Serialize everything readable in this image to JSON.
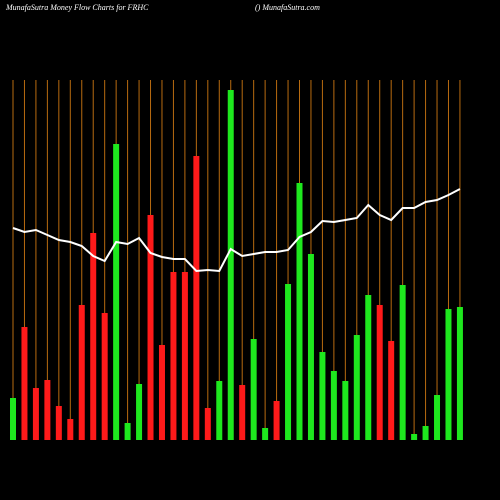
{
  "chart_data": {
    "type": "bar",
    "title": "MunafaSutra  Money Flow  Charts for FRHC",
    "subtitle": "() MunafaSutra.com",
    "categories": [
      null,
      null,
      null,
      null,
      null,
      null,
      null,
      null,
      null,
      null,
      null,
      null,
      null,
      null,
      null,
      null,
      null,
      null,
      null,
      null,
      null,
      null,
      null,
      null,
      null,
      null,
      null,
      null,
      null,
      null,
      null,
      null,
      null,
      null,
      null,
      null,
      null,
      null,
      null,
      null
    ],
    "series": [
      {
        "type": "bar",
        "values": [
          42,
          113,
          52,
          60,
          34,
          21,
          135,
          207,
          127,
          296,
          17,
          56,
          225,
          95,
          168,
          168,
          284,
          32,
          59,
          350,
          55,
          101,
          12,
          39,
          156,
          257,
          186,
          88,
          69,
          59,
          105,
          145,
          135,
          99,
          155,
          6,
          14,
          45,
          131,
          133
        ],
        "colors": [
          "#1ee81e",
          "#ff1a1a",
          "#ff1a1a",
          "#ff1a1a",
          "#ff1a1a",
          "#ff1a1a",
          "#ff1a1a",
          "#ff1a1a",
          "#ff1a1a",
          "#1ee81e",
          "#1ee81e",
          "#1ee81e",
          "#ff1a1a",
          "#ff1a1a",
          "#ff1a1a",
          "#ff1a1a",
          "#ff1a1a",
          "#ff1a1a",
          "#1ee81e",
          "#1ee81e",
          "#ff1a1a",
          "#1ee81e",
          "#1ee81e",
          "#ff1a1a",
          "#1ee81e",
          "#1ee81e",
          "#1ee81e",
          "#1ee81e",
          "#1ee81e",
          "#1ee81e",
          "#1ee81e",
          "#1ee81e",
          "#ff1a1a",
          "#ff1a1a",
          "#1ee81e",
          "#1ee81e",
          "#1ee81e",
          "#1ee81e",
          "#1ee81e",
          "#1ee81e"
        ]
      },
      {
        "type": "line",
        "color": "#ffffff",
        "values": [
          212,
          208,
          210,
          205,
          200,
          198,
          194,
          184,
          179,
          198,
          196,
          202,
          187,
          183,
          181,
          181,
          169,
          170,
          169,
          191,
          184,
          186,
          188,
          188,
          190,
          203,
          208,
          219,
          218,
          220,
          222,
          235,
          225,
          220,
          232,
          232,
          238,
          240,
          245,
          251
        ]
      }
    ],
    "ylim": [
      0,
      360
    ],
    "grid_color": "#b86b10",
    "background": "#000000"
  }
}
